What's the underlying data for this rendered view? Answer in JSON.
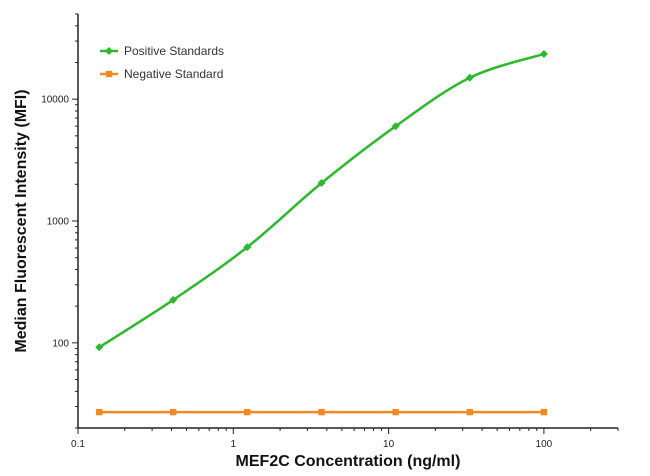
{
  "chart_data": {
    "type": "line",
    "x_scale": "log",
    "y_scale": "log",
    "xlabel": "MEF2C Concentration (ng/ml)",
    "ylabel": "Median Fluorescent Intensity (MFI)",
    "xlim": [
      0.1,
      300
    ],
    "ylim": [
      20,
      50000
    ],
    "x_ticks": [
      0.1,
      1,
      10,
      100
    ],
    "x_tick_labels": [
      "0.1",
      "1",
      "10",
      "100"
    ],
    "y_ticks": [
      100,
      1000,
      10000
    ],
    "y_tick_labels": [
      "100",
      "1000",
      "10000"
    ],
    "grid": false,
    "legend_position": "top-left",
    "series": [
      {
        "name": "Positive Standards",
        "color": "#2db82d",
        "marker": "diamond",
        "x": [
          0.137,
          0.41,
          1.23,
          3.7,
          11.1,
          33.3,
          100
        ],
        "y": [
          92,
          225,
          610,
          2050,
          6000,
          15000,
          23500
        ]
      },
      {
        "name": "Negative Standard",
        "color": "#f08a24",
        "marker": "square",
        "x": [
          0.137,
          0.41,
          1.23,
          3.7,
          11.1,
          33.3,
          100
        ],
        "y": [
          27,
          27,
          27,
          27,
          27,
          27,
          27
        ]
      }
    ]
  }
}
